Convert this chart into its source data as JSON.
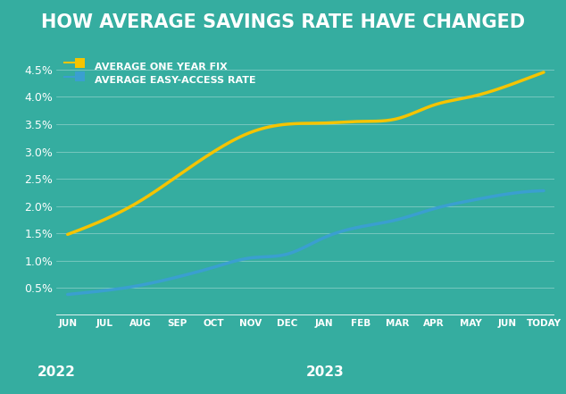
{
  "title": "HOW AVERAGE SAVINGS RATE HAVE CHANGED",
  "background_color": "#35ada0",
  "title_bg_color": "#2a7a6e",
  "x_labels": [
    "JUN",
    "JUL",
    "AUG",
    "SEP",
    "OCT",
    "NOV",
    "DEC",
    "JAN",
    "FEB",
    "MAR",
    "APR",
    "MAY",
    "JUN",
    "TODAY"
  ],
  "yellow_line": [
    1.48,
    1.75,
    2.1,
    2.55,
    3.0,
    3.35,
    3.5,
    3.52,
    3.55,
    3.6,
    3.85,
    4.0,
    4.2,
    4.45
  ],
  "blue_line": [
    0.38,
    0.45,
    0.55,
    0.7,
    0.88,
    1.05,
    1.12,
    1.42,
    1.62,
    1.75,
    1.95,
    2.1,
    2.22,
    2.28
  ],
  "ylim": [
    0.0,
    4.8
  ],
  "yticks": [
    0.5,
    1.0,
    1.5,
    2.0,
    2.5,
    3.0,
    3.5,
    4.0,
    4.5
  ],
  "yellow_color": "#F5C400",
  "blue_color": "#3A9FD0",
  "grid_color": "#ffffff",
  "legend_yellow": "AVERAGE ONE YEAR FIX",
  "legend_blue": "AVERAGE EASY-ACCESS RATE",
  "text_color": "#ffffff",
  "line_width": 2.5,
  "title_fontsize": 15,
  "label_fontsize": 7.5,
  "year_fontsize": 11,
  "legend_fontsize": 8
}
